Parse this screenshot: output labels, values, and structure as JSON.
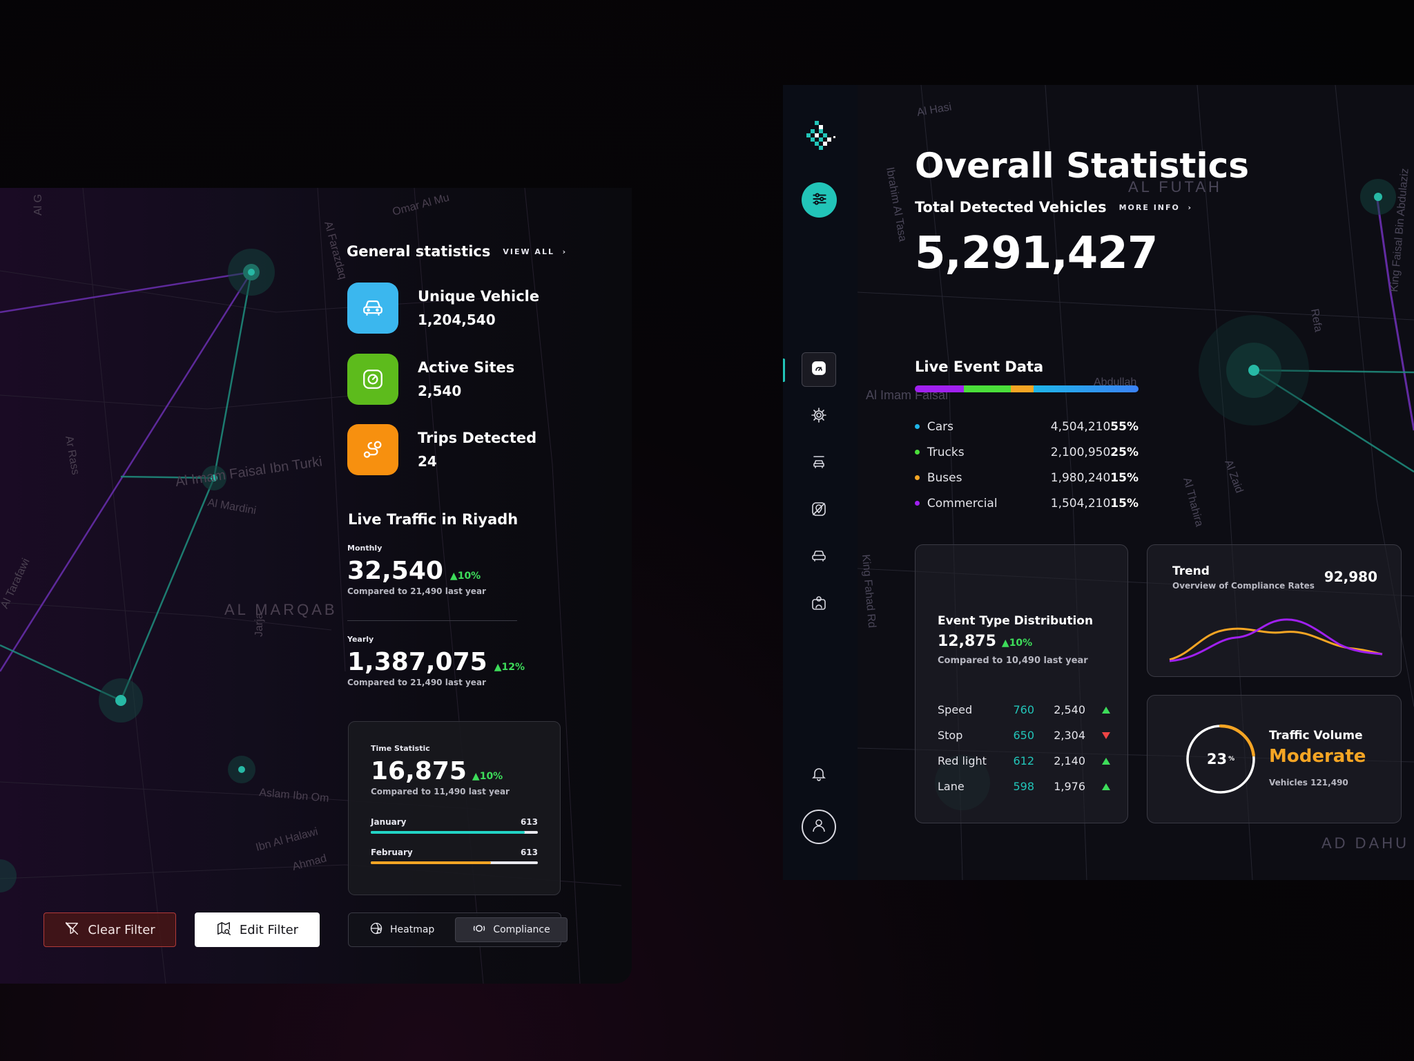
{
  "general_statistics": {
    "title": "General statistics",
    "view_all": "VIEW ALL",
    "items": [
      {
        "label": "Unique Vehicle",
        "value": "1,204,540",
        "icon": "car-icon",
        "color": "#3bb7ee"
      },
      {
        "label": "Active Sites",
        "value": "2,540",
        "icon": "gauge-icon",
        "color": "#5dbb1c"
      },
      {
        "label": "Trips Detected",
        "value": "24",
        "icon": "route-icon",
        "color": "#f7900f"
      }
    ]
  },
  "live_traffic": {
    "title": "Live Traffic in Riyadh",
    "monthly": {
      "label": "Monthly",
      "value": "32,540",
      "change": "10%",
      "compare": "Compared to 21,490 last year"
    },
    "yearly": {
      "label": "Yearly",
      "value": "1,387,075",
      "change": "12%",
      "compare": "Compared to 21,490 last year"
    }
  },
  "time_statistic": {
    "label": "Time Statistic",
    "value": "16,875",
    "change": "10%",
    "compare": "Compared to 11,490 last year",
    "bars": [
      {
        "label": "January",
        "value": "613",
        "fill": 0.92,
        "color": "#22d3c5"
      },
      {
        "label": "February",
        "value": "613",
        "fill": 0.72,
        "color": "#f5a524"
      }
    ]
  },
  "filters": {
    "clear_label": "Clear Filter",
    "edit_label": "Edit Filter",
    "heatmap_label": "Heatmap",
    "compliance_label": "Compliance",
    "active": "Compliance"
  },
  "overall": {
    "title": "Overall Statistics",
    "tdv_label": "Total Detected Vehicles",
    "more_info": "MORE INFO",
    "tdv_value": "5,291,427"
  },
  "live_event": {
    "title": "Live Event Data",
    "items": [
      {
        "name": "Cars",
        "count": "4,504,210",
        "pct": "55%",
        "color": "#1fb5e8"
      },
      {
        "name": "Trucks",
        "count": "2,100,950",
        "pct": "25%",
        "color": "#4ade3a"
      },
      {
        "name": "Buses",
        "count": "1,980,240",
        "pct": "15%",
        "color": "#f5a524"
      },
      {
        "name": "Commercial",
        "count": "1,504,210",
        "pct": "15%",
        "color": "#a020f0"
      }
    ]
  },
  "event_type": {
    "title": "Event Type Distribution",
    "value": "12,875",
    "change": "10%",
    "compare": "Compared to 10,490 last year",
    "rows": [
      {
        "name": "Speed",
        "a": "760",
        "b": "2,540",
        "trend": "up"
      },
      {
        "name": "Stop",
        "a": "650",
        "b": "2,304",
        "trend": "down"
      },
      {
        "name": "Red light",
        "a": "612",
        "b": "2,140",
        "trend": "up"
      },
      {
        "name": "Lane",
        "a": "598",
        "b": "1,976",
        "trend": "up"
      }
    ]
  },
  "trend": {
    "title": "Trend",
    "subtitle": "Overview of Compliance Rates",
    "value": "92,980"
  },
  "traffic_volume": {
    "title": "Traffic Volume",
    "status": "Moderate",
    "vehicles": "Vehicles 121,490",
    "percent": "23",
    "percent_unit": "%",
    "fraction": 0.23
  },
  "map_labels": [
    "Al G",
    "Omar Al Mu",
    "Al Farazdaq",
    "Ar Rass",
    "Al Imam Faisal Ibn Turki",
    "Al Mardini",
    "Al Tarafawi",
    "AL MARQAB",
    "Jarja",
    "Aslam Ibn Om",
    "Ibn Al Halawi",
    "Ahmad",
    "Al Hasi",
    "AL FUTAH",
    "Ibrahim Al Tasa",
    "Refa",
    "King Faisal Bin Abdulaziz",
    "Al Imam Faisal",
    "Al Thahira",
    "Al Zaid",
    "King Fahad Rd",
    "AD DAHU",
    "Abdullah"
  ],
  "colors": {
    "accent": "#22c4b8",
    "green": "#3ddc5a",
    "red": "#ef4444",
    "orange": "#f5a524",
    "purple": "#a020f0"
  }
}
